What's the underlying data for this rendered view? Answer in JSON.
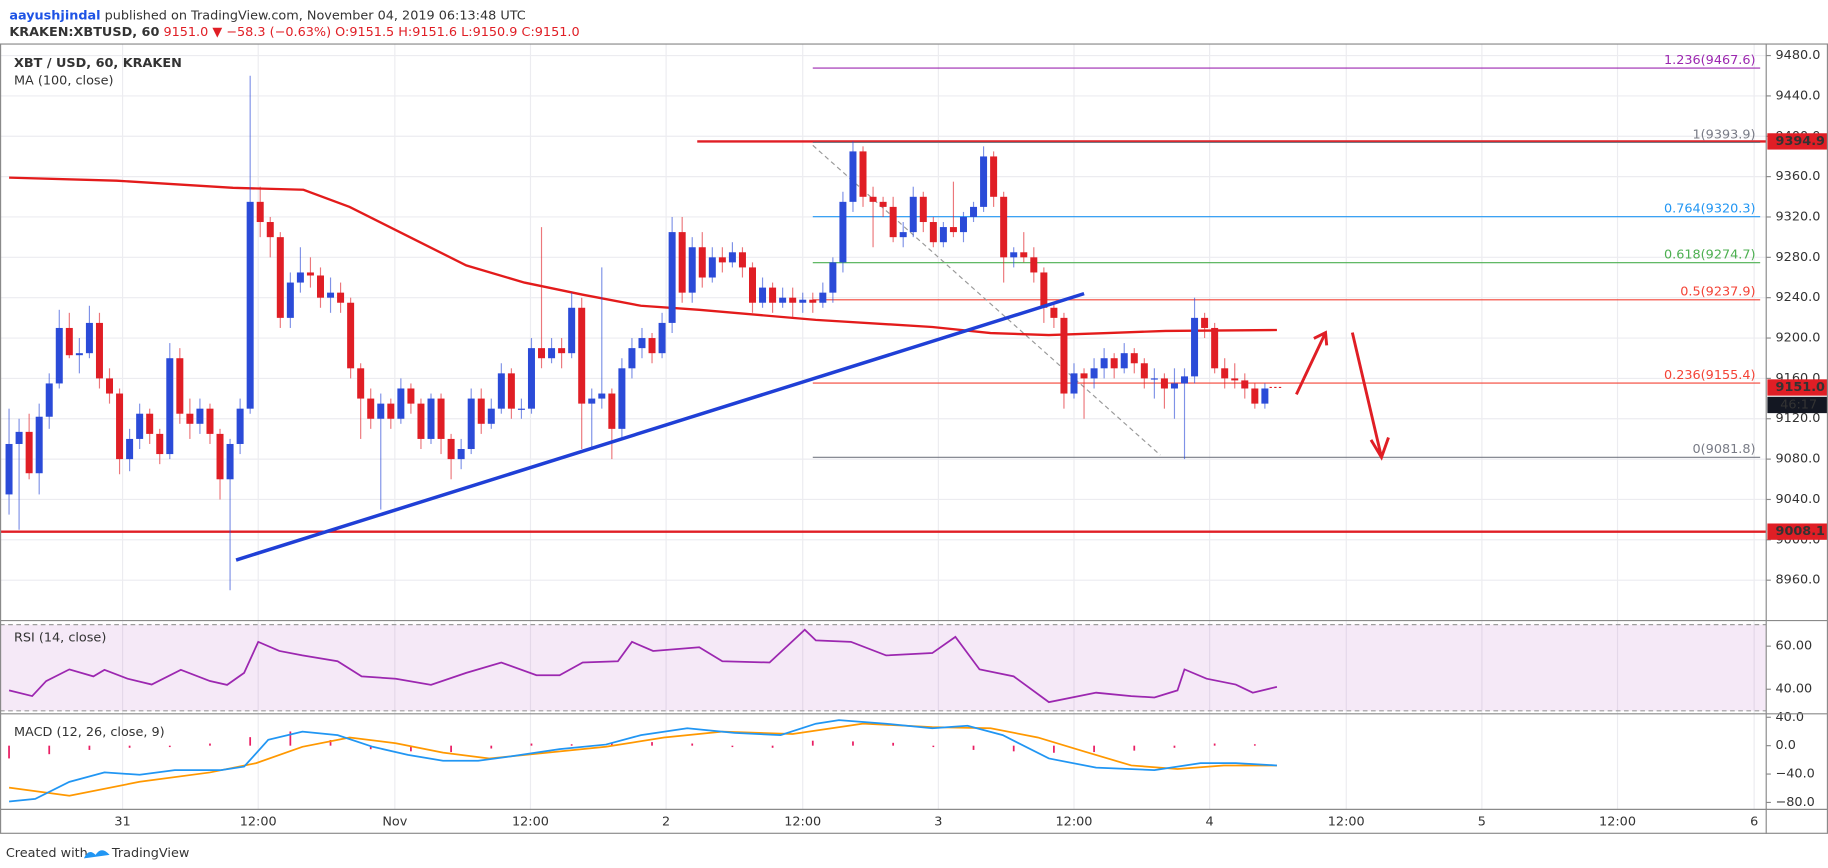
{
  "header": {
    "author": "aayushjindal",
    "published": "published on TradingView.com, November 04, 2019 06:13:48 UTC",
    "symbol": "KRAKEN:XBTUSD, 60",
    "last": "9151.0",
    "change": "−58.3 (−0.63%)",
    "open": "O:9151.5",
    "high": "H:9151.6",
    "low": "L:9150.9",
    "close": "C:9151.0"
  },
  "chart_data": {
    "type": "candlestick",
    "title": "XBT / USD, 60, KRAKEN",
    "up_color": "#2b4bd8",
    "down_color": "#e01e25",
    "xlim": [
      -0.9,
      174.9
    ],
    "xticks": [
      {
        "value": 11.3,
        "label": "31"
      },
      {
        "value": 24.8,
        "label": "12:00"
      },
      {
        "value": 38.4,
        "label": "Nov"
      },
      {
        "value": 51.9,
        "label": "12:00"
      },
      {
        "value": 65.4,
        "label": "2"
      },
      {
        "value": 79.0,
        "label": "12:00"
      },
      {
        "value": 92.5,
        "label": "3"
      },
      {
        "value": 106.0,
        "label": "12:00"
      },
      {
        "value": 119.5,
        "label": "4"
      },
      {
        "value": 133.1,
        "label": "12:00"
      },
      {
        "value": 146.6,
        "label": "5"
      },
      {
        "value": 160.1,
        "label": "12:00"
      },
      {
        "value": 173.7,
        "label": "6"
      }
    ],
    "ylim": [
      8920,
      9492
    ],
    "yticks": [
      {
        "value": 9480,
        "label": "9480.0"
      },
      {
        "value": 9440,
        "label": "9440.0"
      },
      {
        "value": 9400,
        "label": "9400.0"
      },
      {
        "value": 9360,
        "label": "9360.0"
      },
      {
        "value": 9320,
        "label": "9320.0"
      },
      {
        "value": 9280,
        "label": "9280.0"
      },
      {
        "value": 9240,
        "label": "9240.0"
      },
      {
        "value": 9200,
        "label": "9200.0"
      },
      {
        "value": 9160,
        "label": "9160.0"
      },
      {
        "value": 9120,
        "label": "9120.0"
      },
      {
        "value": 9080,
        "label": "9080.0"
      },
      {
        "value": 9040,
        "label": "9040.0"
      },
      {
        "value": 9000,
        "label": "9000.0"
      },
      {
        "value": 8960,
        "label": "8960.0"
      }
    ],
    "grid": true,
    "ohlc": [
      [
        9045,
        9130,
        9025,
        9095
      ],
      [
        9095,
        9120,
        9010,
        9107
      ],
      [
        9107,
        9125,
        9060,
        9066
      ],
      [
        9066,
        9135,
        9045,
        9122
      ],
      [
        9122,
        9165,
        9110,
        9155
      ],
      [
        9155,
        9228,
        9150,
        9210
      ],
      [
        9210,
        9225,
        9180,
        9183
      ],
      [
        9183,
        9200,
        9165,
        9185
      ],
      [
        9185,
        9232,
        9180,
        9215
      ],
      [
        9215,
        9225,
        9150,
        9160
      ],
      [
        9160,
        9170,
        9135,
        9145
      ],
      [
        9145,
        9150,
        9065,
        9080
      ],
      [
        9080,
        9110,
        9068,
        9100
      ],
      [
        9100,
        9135,
        9090,
        9125
      ],
      [
        9125,
        9130,
        9095,
        9105
      ],
      [
        9105,
        9110,
        9075,
        9085
      ],
      [
        9085,
        9195,
        9080,
        9180
      ],
      [
        9180,
        9190,
        9115,
        9125
      ],
      [
        9125,
        9140,
        9100,
        9115
      ],
      [
        9115,
        9140,
        9105,
        9130
      ],
      [
        9130,
        9135,
        9095,
        9105
      ],
      [
        9105,
        9110,
        9040,
        9060
      ],
      [
        9060,
        9100,
        8950,
        9095
      ],
      [
        9095,
        9140,
        9085,
        9130
      ],
      [
        9130,
        9460,
        9125,
        9335
      ],
      [
        9335,
        9350,
        9300,
        9315
      ],
      [
        9315,
        9320,
        9280,
        9300
      ],
      [
        9300,
        9305,
        9210,
        9220
      ],
      [
        9220,
        9265,
        9210,
        9255
      ],
      [
        9255,
        9290,
        9245,
        9265
      ],
      [
        9265,
        9280,
        9250,
        9262
      ],
      [
        9262,
        9270,
        9230,
        9240
      ],
      [
        9240,
        9260,
        9225,
        9245
      ],
      [
        9245,
        9255,
        9225,
        9235
      ],
      [
        9235,
        9240,
        9160,
        9170
      ],
      [
        9170,
        9175,
        9100,
        9140
      ],
      [
        9140,
        9150,
        9110,
        9120
      ],
      [
        9120,
        9145,
        9030,
        9135
      ],
      [
        9135,
        9140,
        9110,
        9120
      ],
      [
        9120,
        9160,
        9115,
        9150
      ],
      [
        9150,
        9155,
        9125,
        9135
      ],
      [
        9135,
        9140,
        9090,
        9100
      ],
      [
        9100,
        9145,
        9095,
        9140
      ],
      [
        9140,
        9145,
        9085,
        9100
      ],
      [
        9100,
        9105,
        9060,
        9080
      ],
      [
        9080,
        9100,
        9070,
        9090
      ],
      [
        9090,
        9150,
        9085,
        9140
      ],
      [
        9140,
        9150,
        9105,
        9115
      ],
      [
        9115,
        9140,
        9110,
        9130
      ],
      [
        9130,
        9175,
        9125,
        9165
      ],
      [
        9165,
        9170,
        9120,
        9130
      ],
      [
        9130,
        9140,
        9120,
        9130
      ],
      [
        9130,
        9200,
        9125,
        9190
      ],
      [
        9190,
        9310,
        9170,
        9180
      ],
      [
        9180,
        9200,
        9175,
        9190
      ],
      [
        9190,
        9200,
        9170,
        9185
      ],
      [
        9185,
        9245,
        9180,
        9230
      ],
      [
        9230,
        9240,
        9090,
        9135
      ],
      [
        9135,
        9150,
        9090,
        9140
      ],
      [
        9140,
        9270,
        9130,
        9145
      ],
      [
        9145,
        9150,
        9080,
        9110
      ],
      [
        9110,
        9180,
        9100,
        9170
      ],
      [
        9170,
        9200,
        9160,
        9190
      ],
      [
        9190,
        9210,
        9180,
        9200
      ],
      [
        9200,
        9205,
        9175,
        9185
      ],
      [
        9185,
        9225,
        9180,
        9215
      ],
      [
        9215,
        9320,
        9205,
        9305
      ],
      [
        9305,
        9320,
        9235,
        9245
      ],
      [
        9245,
        9300,
        9235,
        9290
      ],
      [
        9290,
        9305,
        9250,
        9260
      ],
      [
        9260,
        9290,
        9255,
        9280
      ],
      [
        9280,
        9290,
        9265,
        9275
      ],
      [
        9275,
        9295,
        9270,
        9285
      ],
      [
        9285,
        9290,
        9260,
        9270
      ],
      [
        9270,
        9275,
        9225,
        9235
      ],
      [
        9235,
        9260,
        9230,
        9250
      ],
      [
        9250,
        9255,
        9225,
        9235
      ],
      [
        9235,
        9250,
        9230,
        9240
      ],
      [
        9240,
        9250,
        9220,
        9235
      ],
      [
        9235,
        9245,
        9225,
        9238
      ],
      [
        9238,
        9245,
        9225,
        9235
      ],
      [
        9235,
        9255,
        9230,
        9245
      ],
      [
        9245,
        9280,
        9235,
        9275
      ],
      [
        9275,
        9345,
        9265,
        9335
      ],
      [
        9335,
        9395,
        9325,
        9385
      ],
      [
        9385,
        9390,
        9330,
        9340
      ],
      [
        9340,
        9350,
        9290,
        9335
      ],
      [
        9335,
        9340,
        9320,
        9330
      ],
      [
        9330,
        9340,
        9295,
        9300
      ],
      [
        9300,
        9315,
        9290,
        9305
      ],
      [
        9305,
        9350,
        9300,
        9340
      ],
      [
        9340,
        9345,
        9305,
        9315
      ],
      [
        9315,
        9320,
        9290,
        9295
      ],
      [
        9295,
        9315,
        9290,
        9310
      ],
      [
        9310,
        9355,
        9300,
        9305
      ],
      [
        9305,
        9325,
        9295,
        9320
      ],
      [
        9320,
        9335,
        9315,
        9330
      ],
      [
        9330,
        9390,
        9325,
        9380
      ],
      [
        9380,
        9385,
        9330,
        9340
      ],
      [
        9340,
        9345,
        9255,
        9280
      ],
      [
        9280,
        9290,
        9270,
        9285
      ],
      [
        9285,
        9305,
        9275,
        9280
      ],
      [
        9280,
        9290,
        9255,
        9265
      ],
      [
        9265,
        9270,
        9215,
        9230
      ],
      [
        9230,
        9235,
        9210,
        9220
      ],
      [
        9220,
        9225,
        9130,
        9145
      ],
      [
        9145,
        9175,
        9140,
        9165
      ],
      [
        9165,
        9170,
        9120,
        9160
      ],
      [
        9160,
        9180,
        9150,
        9170
      ],
      [
        9170,
        9190,
        9160,
        9180
      ],
      [
        9180,
        9185,
        9160,
        9170
      ],
      [
        9170,
        9195,
        9165,
        9185
      ],
      [
        9185,
        9190,
        9165,
        9175
      ],
      [
        9175,
        9180,
        9150,
        9160
      ],
      [
        9160,
        9170,
        9140,
        9160
      ],
      [
        9160,
        9165,
        9130,
        9150
      ],
      [
        9150,
        9170,
        9120,
        9155
      ],
      [
        9155,
        9170,
        9080,
        9162
      ],
      [
        9162,
        9240,
        9155,
        9220
      ],
      [
        9220,
        9225,
        9200,
        9210
      ],
      [
        9210,
        9215,
        9165,
        9170
      ],
      [
        9170,
        9180,
        9150,
        9160
      ],
      [
        9160,
        9175,
        9150,
        9158
      ],
      [
        9158,
        9165,
        9140,
        9150
      ],
      [
        9150,
        9155,
        9130,
        9135
      ],
      [
        9135,
        9155,
        9130,
        9150
      ]
    ],
    "ma": {
      "name": "MA (100, close)",
      "color": "#e31b1b",
      "x": [
        0,
        10.7,
        22.3,
        29.3,
        33.9,
        39.7,
        45.5,
        51.3,
        57.1,
        62.9,
        68.7,
        80.3,
        91.9,
        97.7,
        103.5,
        109.3,
        115.1,
        126.2
      ],
      "values": [
        9359,
        9356,
        9349,
        9347,
        9330,
        9301,
        9272,
        9255,
        9243,
        9232,
        9228,
        9218,
        9211,
        9205,
        9203,
        9205,
        9207,
        9208
      ]
    },
    "trendline": {
      "color": "#1f3fd6",
      "x": [
        22.6,
        107.0
      ],
      "values": [
        8980,
        9244
      ]
    },
    "fib_trend": {
      "color": "#999999",
      "x": [
        80.0,
        114.6
      ],
      "values": [
        9391,
        9084
      ]
    },
    "levels": [
      {
        "value": 9394.9,
        "x_start": 68.5,
        "color": "#e01e25"
      },
      {
        "value": 9008.1,
        "color": "#e01e25"
      }
    ],
    "fib": {
      "x": [
        80.0,
        174.3
      ],
      "levels": [
        {
          "level": 1.236,
          "price": 9467.6,
          "color": "#9c27b0"
        },
        {
          "level": 1,
          "price": 9393.9,
          "color": "#787b86"
        },
        {
          "level": 0.764,
          "price": 9320.3,
          "color": "#2196f3"
        },
        {
          "level": 0.618,
          "price": 9274.7,
          "color": "#4caf50"
        },
        {
          "level": 0.5,
          "price": 9237.9,
          "color": "#f44336"
        },
        {
          "level": 0.236,
          "price": 9155.4,
          "color": "#f44336"
        },
        {
          "level": 0,
          "price": 9081.8,
          "color": "#787b86"
        }
      ]
    },
    "last_price": {
      "value": 9151,
      "label": "9151.0",
      "color": "#e01e25"
    },
    "countdown": "46:17",
    "rsi": {
      "name": "RSI (14, close)",
      "color": "#9c27b0",
      "ylim": [
        28.6,
        71.9
      ],
      "yticks": [
        {
          "value": 60,
          "label": "60.00"
        },
        {
          "value": 40,
          "label": "40.00"
        }
      ],
      "band": [
        30,
        70
      ],
      "x": [
        0,
        2.3,
        3.7,
        6.0,
        8.4,
        9.5,
        11.8,
        14.2,
        17.1,
        20.0,
        21.7,
        23.4,
        24.8,
        26.9,
        29.2,
        32.7,
        35.1,
        38.5,
        42.0,
        45.5,
        49.0,
        52.5,
        54.8,
        57.1,
        60.6,
        62.0,
        64.1,
        68.7,
        71.0,
        75.7,
        79.2,
        80.3,
        83.8,
        87.3,
        91.9,
        94.2,
        96.6,
        100.0,
        103.5,
        108.2,
        111.7,
        114.0,
        116.3,
        117.0,
        119.2,
        122.1,
        123.8,
        126.2
      ],
      "values": [
        39.5,
        36.8,
        43.8,
        49.2,
        46,
        49,
        44.9,
        42.2,
        49,
        43.8,
        42,
        47.6,
        62,
        57.8,
        55.7,
        53,
        46,
        44.9,
        42,
        47.6,
        52.4,
        46.5,
        46.5,
        52.4,
        53,
        62,
        57.8,
        59.5,
        53,
        52.4,
        67.6,
        62.7,
        62,
        55.7,
        56.8,
        64.3,
        49.2,
        46,
        34,
        38.4,
        36.8,
        36.2,
        39.5,
        49.2,
        44.9,
        42.2,
        38.4,
        41.1
      ]
    },
    "macd": {
      "name": "MACD (12, 26, close, 9)",
      "ylim": [
        -89.8,
        44.9
      ],
      "yticks": [
        {
          "value": 40,
          "label": "40.0"
        },
        {
          "value": 0,
          "label": "0.0"
        },
        {
          "value": -40,
          "label": "−40.0"
        },
        {
          "value": -80,
          "label": "−80.0"
        }
      ],
      "line": {
        "color": "#2196f3",
        "x": [
          0,
          2.6,
          6.0,
          9.5,
          13.0,
          16.5,
          21.1,
          23.4,
          25.8,
          29.2,
          32.7,
          36.2,
          39.7,
          43.2,
          46.7,
          50.1,
          54.8,
          59.4,
          62.9,
          67.5,
          72.2,
          76.8,
          80.3,
          82.6,
          87.3,
          91.9,
          95.4,
          98.9,
          103.5,
          108.2,
          114.0,
          118.6,
          122.1,
          126.2
        ],
        "values": [
          -78.7,
          -75,
          -51,
          -37.7,
          -41,
          -34.4,
          -34.4,
          -29.5,
          8.2,
          19.7,
          14.8,
          -1.6,
          -13,
          -21.3,
          -21.3,
          -14.8,
          -4.9,
          1.6,
          14.8,
          24.6,
          18,
          14.8,
          31,
          36,
          31,
          24.6,
          27.9,
          14.8,
          -18,
          -31,
          -34.4,
          -24.6,
          -24.6,
          -27.9
        ]
      },
      "signal": {
        "color": "#ff9800",
        "x": [
          0,
          6.0,
          13.0,
          20.0,
          24.6,
          29.2,
          33.9,
          38.5,
          43.2,
          47.8,
          53.6,
          59.4,
          65.2,
          71.0,
          78.0,
          85.0,
          91.9,
          97.7,
          102.4,
          107.0,
          111.7,
          116.3,
          120.9,
          126.2
        ],
        "values": [
          -59,
          -70.5,
          -50.8,
          -37.7,
          -24.6,
          -1.6,
          11.5,
          3.3,
          -9.8,
          -18,
          -9.8,
          -1.6,
          11.5,
          19.7,
          16.4,
          31.1,
          26.2,
          24.6,
          11.5,
          -8.2,
          -27.9,
          -32.8,
          -27.9,
          -27.9
        ]
      },
      "histogram": {
        "color": "#e91e63",
        "x": [
          0,
          4,
          8,
          12,
          16,
          20,
          24,
          28,
          32,
          36,
          40,
          44,
          48,
          52,
          56,
          60,
          64,
          68,
          72,
          76,
          80,
          84,
          88,
          92,
          96,
          100,
          104,
          108,
          112,
          116,
          120,
          124
        ],
        "values": [
          -18,
          -12,
          -6,
          -3,
          -2,
          3,
          12,
          20,
          8,
          -5,
          -8,
          -9,
          -4,
          3,
          2,
          3,
          5,
          3,
          -2,
          -3,
          7,
          6,
          4,
          -2,
          -6,
          -8,
          -10,
          -9,
          -7,
          -3,
          3,
          2
        ]
      }
    }
  },
  "footer": {
    "created": "Created with",
    "brand": "TradingView"
  }
}
